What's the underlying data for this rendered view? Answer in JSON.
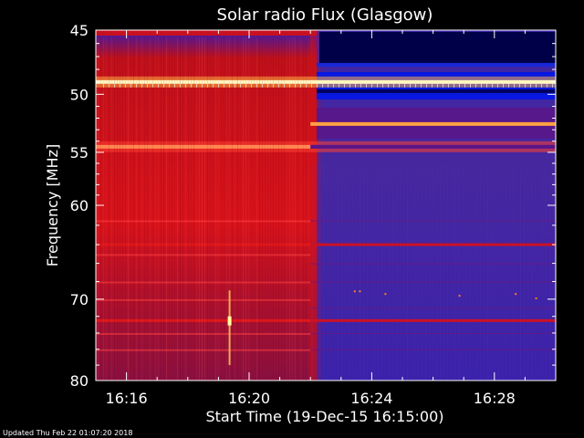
{
  "chart_data": {
    "type": "heatmap",
    "title": "Solar radio Flux (Glasgow)",
    "xlabel": "Start Time (19-Dec-15 16:15:00)",
    "ylabel": "Frequency [MHz]",
    "x_ticks": [
      "16:16",
      "16:20",
      "16:24",
      "16:28"
    ],
    "y_ticks": [
      45,
      50,
      55,
      60,
      70,
      80
    ],
    "xlim": [
      "16:15:00",
      "16:30:00"
    ],
    "ylim": [
      45,
      80
    ],
    "y_scale": "log",
    "colormap": "blue-purple-red-yellow-white",
    "regions": [
      {
        "time_start": "16:15:00",
        "time_end": "16:22:00",
        "level": "high",
        "color": "#d0101a"
      },
      {
        "time_start": "16:22:00",
        "time_end": "16:30:00",
        "level": "low",
        "color": "#3a2aa8"
      }
    ],
    "bright_bands": [
      {
        "freq_mhz": 49.0,
        "level": "saturated"
      },
      {
        "freq_mhz": 54.5,
        "level": "high"
      },
      {
        "freq_mhz": 52.5,
        "level": "high"
      },
      {
        "freq_mhz": 64.0,
        "level": "medium"
      },
      {
        "freq_mhz": 72.5,
        "level": "medium"
      }
    ]
  },
  "footer": {
    "updated": "Updated Thu Feb 22 01:07:20 2018"
  },
  "colors": {
    "background": "#000000",
    "red": "#d0101a",
    "purple": "#3a2aa8",
    "blue": "#0a1ae0",
    "navy": "#000040",
    "yellow": "#ffe070"
  }
}
